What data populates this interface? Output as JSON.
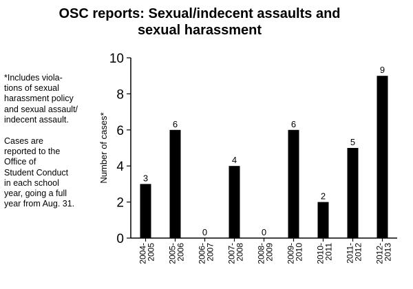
{
  "title_lines": [
    "OSC reports: Sexual/indecent assaults and",
    "sexual harassment"
  ],
  "note_lines": [
    "*Includes viola-",
    "tions of sexual",
    "harassment policy",
    "and sexual assault/",
    "indecent assault."
  ],
  "context_lines": [
    "Cases are",
    "reported to the",
    "Office of",
    "Student Conduct",
    "in each school",
    "year, going a full",
    "year from Aug. 31."
  ],
  "chart_data": {
    "type": "bar",
    "title": "OSC reports: Sexual/indecent assaults and sexual harassment",
    "xlabel": "",
    "ylabel": "Number of cases*",
    "ylim": [
      0,
      10
    ],
    "yticks": [
      0,
      2,
      4,
      6,
      8,
      10
    ],
    "grid": false,
    "categories": [
      [
        "2004-",
        "2005"
      ],
      [
        "2005-",
        "2006"
      ],
      [
        "2006-",
        "2007"
      ],
      [
        "2007-",
        "2008"
      ],
      [
        "2008-",
        "2009"
      ],
      [
        "2009-",
        "2010"
      ],
      [
        "2010-",
        "2011"
      ],
      [
        "2011-",
        "2012"
      ],
      [
        "2012-",
        "2013"
      ]
    ],
    "values": [
      3,
      6,
      0,
      4,
      0,
      6,
      2,
      5,
      9
    ],
    "bar_color": "#000000"
  }
}
